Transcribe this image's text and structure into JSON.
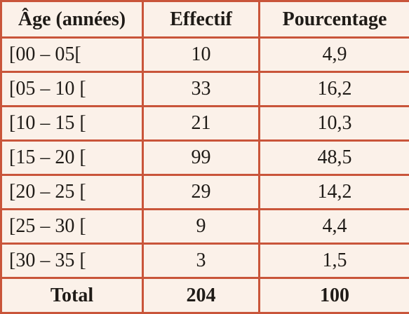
{
  "table": {
    "headers": [
      "Âge (années)",
      "Effectif",
      "Pourcentage"
    ],
    "rows": [
      {
        "age": "[00 – 05[",
        "effectif": "10",
        "pourcentage": "4,9"
      },
      {
        "age": "[05 – 10 [",
        "effectif": "33",
        "pourcentage": "16,2"
      },
      {
        "age": "[10 – 15 [",
        "effectif": "21",
        "pourcentage": "10,3"
      },
      {
        "age": "[15 – 20 [",
        "effectif": "99",
        "pourcentage": "48,5"
      },
      {
        "age": "[20 – 25 [",
        "effectif": "29",
        "pourcentage": "14,2"
      },
      {
        "age": "[25 – 30 [",
        "effectif": "9",
        "pourcentage": "4,4"
      },
      {
        "age": "[30 – 35 [",
        "effectif": "3",
        "pourcentage": "1,5"
      }
    ],
    "total": {
      "label": "Total",
      "effectif": "204",
      "pourcentage": "100"
    }
  },
  "colors": {
    "border": "#C9553A",
    "background": "#FBF1E9",
    "text": "#1f1b17"
  }
}
